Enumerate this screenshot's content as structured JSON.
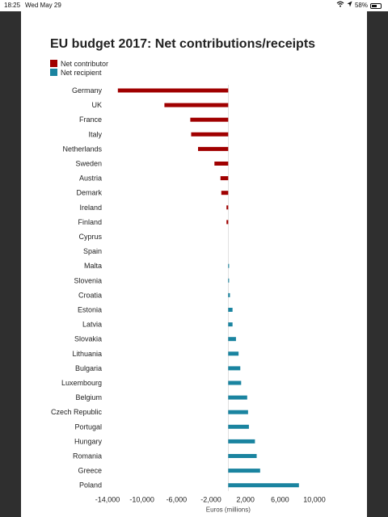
{
  "status_bar": {
    "time": "18:25",
    "date": "Wed May 29",
    "battery": "58%",
    "battery_level": 0.58
  },
  "colors": {
    "net_contributor": "#a00000",
    "net_recipient": "#1a84a0"
  },
  "chart_data": {
    "type": "bar",
    "orientation": "horizontal",
    "title": "EU budget 2017: Net contributions/receipts",
    "xlabel": "Euros (millions)",
    "ylabel": "",
    "xlim": [
      -14000,
      10000
    ],
    "xticks": [
      -14000,
      -10000,
      -6000,
      -2000,
      2000,
      6000,
      10000
    ],
    "xtick_labels": [
      "-14,000",
      "-10,000",
      "-6,000",
      "-2,000",
      "2,000",
      "6,000",
      "10,000"
    ],
    "grid": false,
    "legend_position": "top-left",
    "legend": [
      {
        "name": "Net contributor",
        "color": "#a00000"
      },
      {
        "name": "Net recipient",
        "color": "#1a84a0"
      }
    ],
    "categories": [
      "Germany",
      "UK",
      "France",
      "Italy",
      "Netherlands",
      "Sweden",
      "Austria",
      "Demark",
      "Ireland",
      "Finland",
      "Cyprus",
      "Spain",
      "Malta",
      "Slovenia",
      "Croatia",
      "Estonia",
      "Latvia",
      "Slovakia",
      "Lithuania",
      "Bulgaria",
      "Luxembourg",
      "Belgium",
      "Czech Republic",
      "Portugal",
      "Hungary",
      "Romania",
      "Greece",
      "Poland"
    ],
    "values": [
      -12800,
      -7400,
      -4400,
      -4300,
      -3500,
      -1600,
      -900,
      -800,
      -200,
      -200,
      0,
      0,
      100,
      100,
      200,
      500,
      500,
      900,
      1200,
      1400,
      1500,
      2200,
      2300,
      2400,
      3100,
      3300,
      3700,
      8200
    ]
  }
}
